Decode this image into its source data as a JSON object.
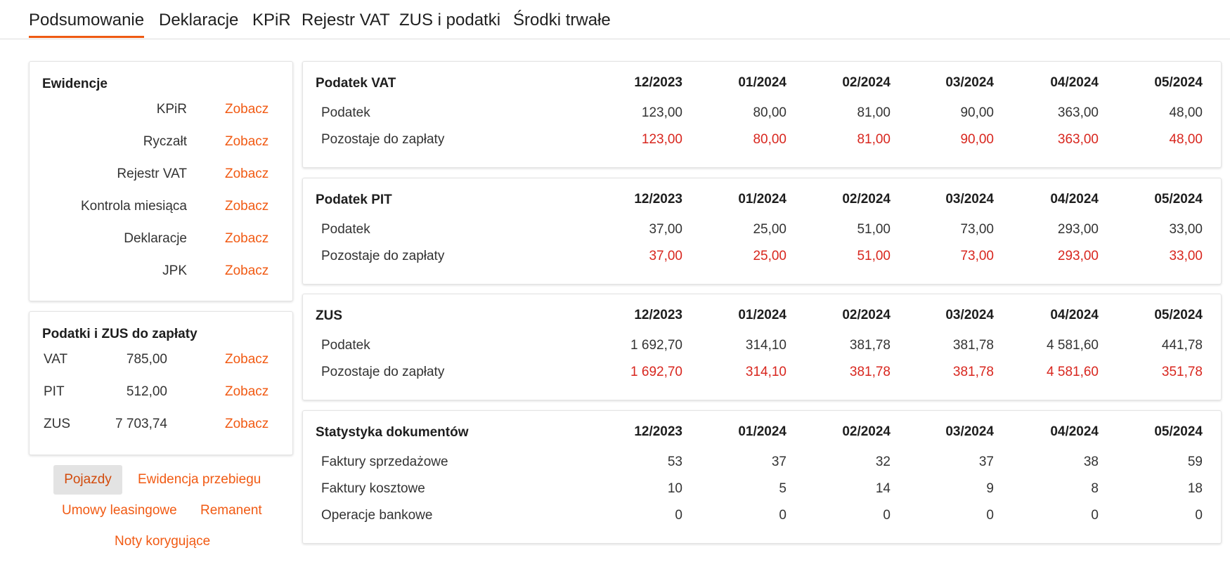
{
  "tabs": [
    {
      "label": "Podsumowanie"
    },
    {
      "label": "Deklaracje"
    },
    {
      "label": "KPiR"
    },
    {
      "label": "Rejestr VAT"
    },
    {
      "label": "ZUS i podatki"
    },
    {
      "label": "Środki trwałe"
    }
  ],
  "ewidencje": {
    "title": "Ewidencje",
    "items": [
      {
        "label": "KPiR",
        "link": "Zobacz"
      },
      {
        "label": "Ryczałt",
        "link": "Zobacz"
      },
      {
        "label": "Rejestr VAT",
        "link": "Zobacz"
      },
      {
        "label": "Kontrola miesiąca",
        "link": "Zobacz"
      },
      {
        "label": "Deklaracje",
        "link": "Zobacz"
      },
      {
        "label": "JPK",
        "link": "Zobacz"
      }
    ]
  },
  "podatki": {
    "title": "Podatki i ZUS do zapłaty",
    "items": [
      {
        "name": "VAT",
        "amount": "785,00",
        "link": "Zobacz"
      },
      {
        "name": "PIT",
        "amount": "512,00",
        "link": "Zobacz"
      },
      {
        "name": "ZUS",
        "amount": "7 703,74",
        "link": "Zobacz"
      }
    ]
  },
  "bottom_links": {
    "pojazdy": "Pojazdy",
    "ewidencja_przebiegu": "Ewidencja przebiegu",
    "umowy_leasingowe": "Umowy leasingowe",
    "remanent": "Remanent",
    "noty_korygujace": "Noty korygujące"
  },
  "sections": [
    {
      "title": "Podatek VAT",
      "months": [
        "12/2023",
        "01/2024",
        "02/2024",
        "03/2024",
        "04/2024",
        "05/2024"
      ],
      "rows": [
        {
          "label": "Podatek",
          "values": [
            "123,00",
            "80,00",
            "81,00",
            "90,00",
            "363,00",
            "48,00"
          ],
          "highlight": false
        },
        {
          "label": "Pozostaje do zapłaty",
          "values": [
            "123,00",
            "80,00",
            "81,00",
            "90,00",
            "363,00",
            "48,00"
          ],
          "highlight": true
        }
      ]
    },
    {
      "title": "Podatek PIT",
      "months": [
        "12/2023",
        "01/2024",
        "02/2024",
        "03/2024",
        "04/2024",
        "05/2024"
      ],
      "rows": [
        {
          "label": "Podatek",
          "values": [
            "37,00",
            "25,00",
            "51,00",
            "73,00",
            "293,00",
            "33,00"
          ],
          "highlight": false
        },
        {
          "label": "Pozostaje do zapłaty",
          "values": [
            "37,00",
            "25,00",
            "51,00",
            "73,00",
            "293,00",
            "33,00"
          ],
          "highlight": true
        }
      ]
    },
    {
      "title": "ZUS",
      "months": [
        "12/2023",
        "01/2024",
        "02/2024",
        "03/2024",
        "04/2024",
        "05/2024"
      ],
      "rows": [
        {
          "label": "Podatek",
          "values": [
            "1 692,70",
            "314,10",
            "381,78",
            "381,78",
            "4 581,60",
            "441,78"
          ],
          "highlight": false
        },
        {
          "label": "Pozostaje do zapłaty",
          "values": [
            "1 692,70",
            "314,10",
            "381,78",
            "381,78",
            "4 581,60",
            "351,78"
          ],
          "highlight": true
        }
      ]
    },
    {
      "title": "Statystyka dokumentów",
      "months": [
        "12/2023",
        "01/2024",
        "02/2024",
        "03/2024",
        "04/2024",
        "05/2024"
      ],
      "rows": [
        {
          "label": "Faktury sprzedażowe",
          "values": [
            "53",
            "37",
            "32",
            "37",
            "38",
            "59"
          ],
          "highlight": false
        },
        {
          "label": "Faktury kosztowe",
          "values": [
            "10",
            "5",
            "14",
            "9",
            "8",
            "18"
          ],
          "highlight": false
        },
        {
          "label": "Operacje bankowe",
          "values": [
            "0",
            "0",
            "0",
            "0",
            "0",
            "0"
          ],
          "highlight": false
        }
      ]
    }
  ]
}
